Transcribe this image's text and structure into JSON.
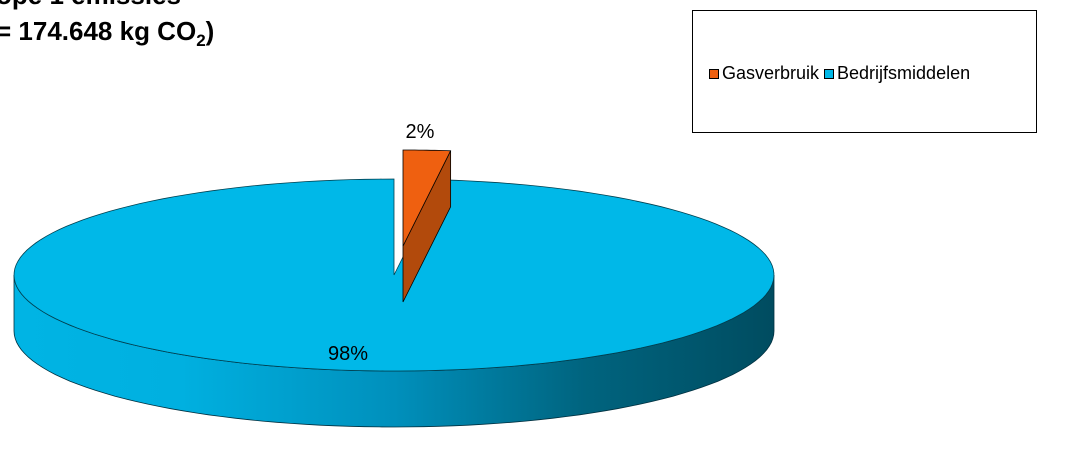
{
  "title": {
    "line1": "ope 1 emissies",
    "line2_prefix": " = 174.648 kg CO",
    "line2_sub": "2",
    "line2_suffix": ")"
  },
  "chart_data": {
    "type": "pie",
    "three_d": true,
    "categories": [
      "Gasverbruik",
      "Bedrijfsmiddelen"
    ],
    "values": [
      2,
      98
    ],
    "data_labels": [
      "2%",
      "98%"
    ],
    "colors": [
      "#ef6010",
      "#00b8e8"
    ],
    "exploded_slice": "Gasverbruik",
    "legend_position": "top-right"
  }
}
